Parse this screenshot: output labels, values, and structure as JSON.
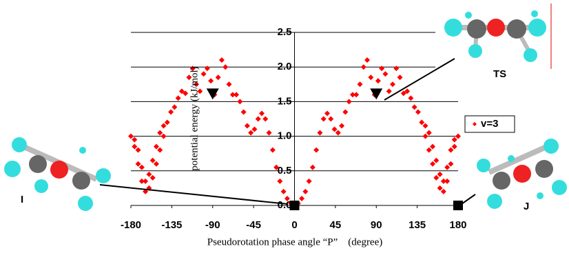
{
  "chart_data": {
    "type": "scatter",
    "y_label": "potential energy (kJ/mol)",
    "x_label": "Pseudorotation phase angle “P”　(degree)",
    "xlim": [
      -180,
      180
    ],
    "ylim": [
      0,
      2.5
    ],
    "xticks": [
      -180,
      -135,
      -90,
      -45,
      0,
      45,
      90,
      135,
      180
    ],
    "yticks": [
      {
        "value": 0,
        "label": "0.0"
      },
      0.5,
      {
        "value": 1,
        "label": "1.0"
      },
      1.5,
      {
        "value": 2,
        "label": "2.0"
      },
      2.5
    ],
    "grid": true,
    "legend": "right",
    "series": [
      {
        "name": "v=3",
        "color": "#ff0000",
        "x": [
          0,
          4,
          8,
          12,
          16,
          20,
          24,
          28,
          32,
          36,
          40,
          44,
          48,
          52,
          56,
          60,
          64,
          68,
          72,
          76,
          80,
          84,
          88,
          92,
          96,
          100,
          104,
          108,
          112,
          116,
          120,
          124,
          128,
          132,
          136,
          140,
          144,
          148,
          152,
          156,
          160,
          164,
          168,
          172,
          176,
          180,
          176,
          172,
          168,
          164,
          160,
          156,
          152,
          148,
          144,
          -4,
          -8,
          -12,
          -16,
          -20,
          -24,
          -28,
          -32,
          -36,
          -40,
          -44,
          -48,
          -52,
          -56,
          -60,
          -64,
          -68,
          -72,
          -76,
          -80,
          -84,
          -88,
          -92,
          -96,
          -100,
          -104,
          -108,
          -112,
          -116,
          -120,
          -124,
          -128,
          -132,
          -136,
          -140,
          -144,
          -148,
          -152,
          -156,
          -160,
          -164,
          -168,
          -172,
          -176,
          -180,
          -176,
          -172,
          -168,
          -164,
          -160,
          -156,
          -152,
          -148,
          -144
        ],
        "values": [
          0,
          0.03,
          0.1,
          0.2,
          0.35,
          0.55,
          0.8,
          1.05,
          1.25,
          1.33,
          1.25,
          1.1,
          1.05,
          1.15,
          1.35,
          1.5,
          1.6,
          1.6,
          1.75,
          2.0,
          2.1,
          1.85,
          1.6,
          1.8,
          1.98,
          1.9,
          1.65,
          1.75,
          1.98,
          1.85,
          1.62,
          1.65,
          1.55,
          1.42,
          1.35,
          1.2,
          1.0,
          0.8,
          0.6,
          0.4,
          0.25,
          0.2,
          0.35,
          0.6,
          0.85,
          1.0,
          0.95,
          0.8,
          0.55,
          0.35,
          0.45,
          0.65,
          0.85,
          1.05,
          1.15,
          0.03,
          0.1,
          0.2,
          0.35,
          0.55,
          0.8,
          1.05,
          1.25,
          1.33,
          1.25,
          1.1,
          1.05,
          1.15,
          1.35,
          1.5,
          1.6,
          1.6,
          1.75,
          2.0,
          2.1,
          1.85,
          1.6,
          1.8,
          1.98,
          1.9,
          1.65,
          1.75,
          1.98,
          1.85,
          1.62,
          1.65,
          1.55,
          1.42,
          1.35,
          1.2,
          1.0,
          0.8,
          0.6,
          0.4,
          0.25,
          0.2,
          0.35,
          0.6,
          0.85,
          1.0,
          0.95,
          0.8,
          0.55,
          0.35,
          0.45,
          0.65,
          0.85,
          1.05,
          1.15
        ]
      }
    ],
    "markers": [
      {
        "shape": "triangle",
        "x": -90,
        "y": 1.6
      },
      {
        "shape": "triangle",
        "x": 90,
        "y": 1.6
      },
      {
        "shape": "square",
        "x": 0,
        "y": 0
      },
      {
        "shape": "square",
        "x": 180,
        "y": 0
      }
    ],
    "annotations": [
      "I",
      "TS",
      "J"
    ]
  }
}
